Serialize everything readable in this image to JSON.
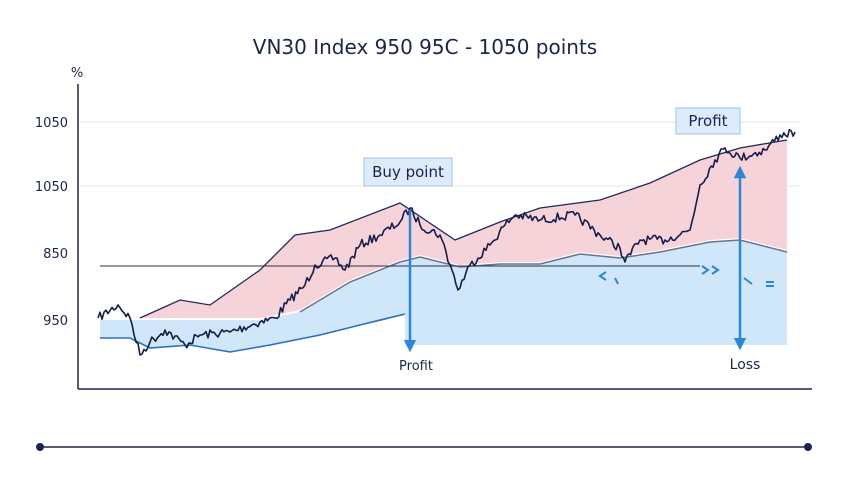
{
  "title": "VN30 Index 950 95C - 1050 points",
  "axis": {
    "unit": "%",
    "y_labels": [
      "1050",
      "1050",
      "850",
      "950"
    ]
  },
  "annotations": {
    "buy_point": "Buy point",
    "profit_top": "Profit",
    "profit_bottom": "Profit",
    "loss": "Loss"
  }
}
